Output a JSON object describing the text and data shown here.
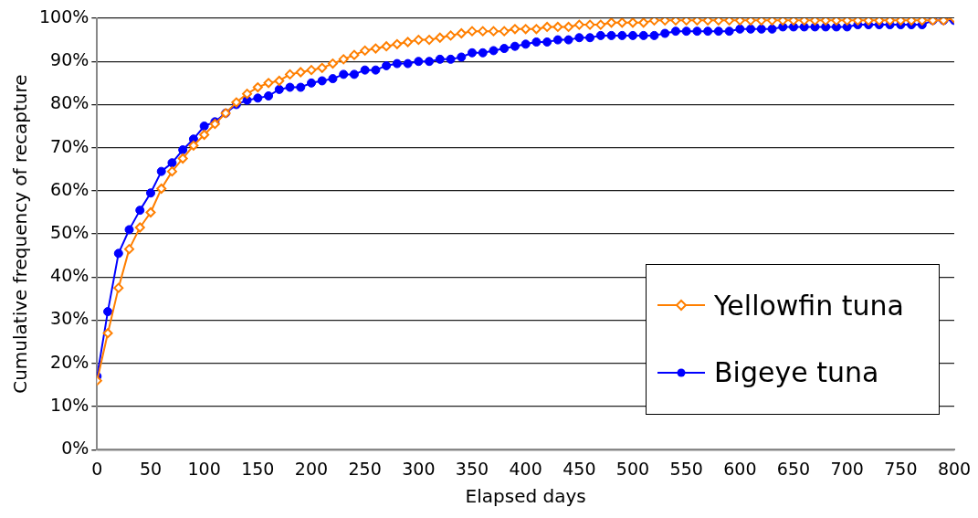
{
  "chart_data": {
    "type": "line",
    "xlabel": "Elapsed days",
    "ylabel": "Cumulative frequency of recapture",
    "x": [
      0,
      10,
      20,
      30,
      40,
      50,
      60,
      70,
      80,
      90,
      100,
      110,
      120,
      130,
      140,
      150,
      160,
      170,
      180,
      190,
      200,
      210,
      220,
      230,
      240,
      250,
      260,
      270,
      280,
      290,
      300,
      310,
      320,
      330,
      340,
      350,
      360,
      370,
      380,
      390,
      400,
      410,
      420,
      430,
      440,
      450,
      460,
      470,
      480,
      490,
      500,
      510,
      520,
      530,
      540,
      550,
      560,
      570,
      580,
      590,
      600,
      610,
      620,
      630,
      640,
      650,
      660,
      670,
      680,
      690,
      700,
      710,
      720,
      730,
      740,
      750,
      760,
      770,
      780,
      790,
      800
    ],
    "series": [
      {
        "name": "Yellowfin tuna",
        "color": "#ff7f00",
        "marker": "diamond",
        "values": [
          16,
          27,
          37.5,
          46.5,
          51.5,
          55,
          60.5,
          64.5,
          67.5,
          70.5,
          73,
          75.5,
          78,
          80.5,
          82.5,
          84,
          85,
          85.5,
          87,
          87.5,
          88,
          88.5,
          89.5,
          90.5,
          91.5,
          92.5,
          93,
          93.5,
          94,
          94.5,
          95,
          95,
          95.5,
          96,
          96.5,
          97,
          97,
          97,
          97,
          97.5,
          97.5,
          97.5,
          98,
          98,
          98,
          98.5,
          98.5,
          98.5,
          99,
          99,
          99,
          99,
          99.5,
          99.5,
          99.5,
          99.5,
          99.5,
          99.5,
          99.5,
          99.5,
          99.5,
          99.5,
          99.5,
          99.5,
          99.5,
          99.5,
          99.5,
          99.5,
          99.5,
          99.5,
          99.5,
          99.5,
          99.5,
          99.5,
          99.5,
          99.5,
          99.5,
          99.5,
          99.5,
          99.5,
          100
        ]
      },
      {
        "name": "Bigeye tuna",
        "color": "#0000ff",
        "marker": "circle",
        "values": [
          17,
          32,
          45.5,
          51,
          55.5,
          59.5,
          64.5,
          66.5,
          69.5,
          72,
          75,
          76,
          78,
          80,
          81,
          81.5,
          82,
          83.5,
          84,
          84,
          85,
          85.5,
          86,
          87,
          87,
          88,
          88,
          89,
          89.5,
          89.5,
          90,
          90,
          90.5,
          90.5,
          91,
          92,
          92,
          92.5,
          93,
          93.5,
          94,
          94.5,
          94.5,
          95,
          95,
          95.5,
          95.5,
          96,
          96,
          96,
          96,
          96,
          96,
          96.5,
          97,
          97,
          97,
          97,
          97,
          97,
          97.5,
          97.5,
          97.5,
          97.5,
          98,
          98,
          98,
          98,
          98,
          98,
          98,
          98.5,
          98.5,
          98.5,
          98.5,
          98.5,
          98.5,
          98.5,
          99.5,
          99.5,
          99.5
        ]
      }
    ],
    "xlim": [
      0,
      800
    ],
    "xticks": [
      0,
      50,
      100,
      150,
      200,
      250,
      300,
      350,
      400,
      450,
      500,
      550,
      600,
      650,
      700,
      750,
      800
    ],
    "ylim": [
      0,
      100
    ],
    "yticks": [
      {
        "value": 0,
        "label": "0%"
      },
      {
        "value": 10,
        "label": "10%"
      },
      {
        "value": 20,
        "label": "20%"
      },
      {
        "value": 30,
        "label": "30%"
      },
      {
        "value": 40,
        "label": "40%"
      },
      {
        "value": 50,
        "label": "50%"
      },
      {
        "value": 60,
        "label": "60%"
      },
      {
        "value": 70,
        "label": "70%"
      },
      {
        "value": 80,
        "label": "80%"
      },
      {
        "value": 90,
        "label": "90%"
      },
      {
        "value": 100,
        "label": "100%"
      }
    ],
    "grid": "y",
    "legend": "right",
    "line_style": "solid"
  }
}
